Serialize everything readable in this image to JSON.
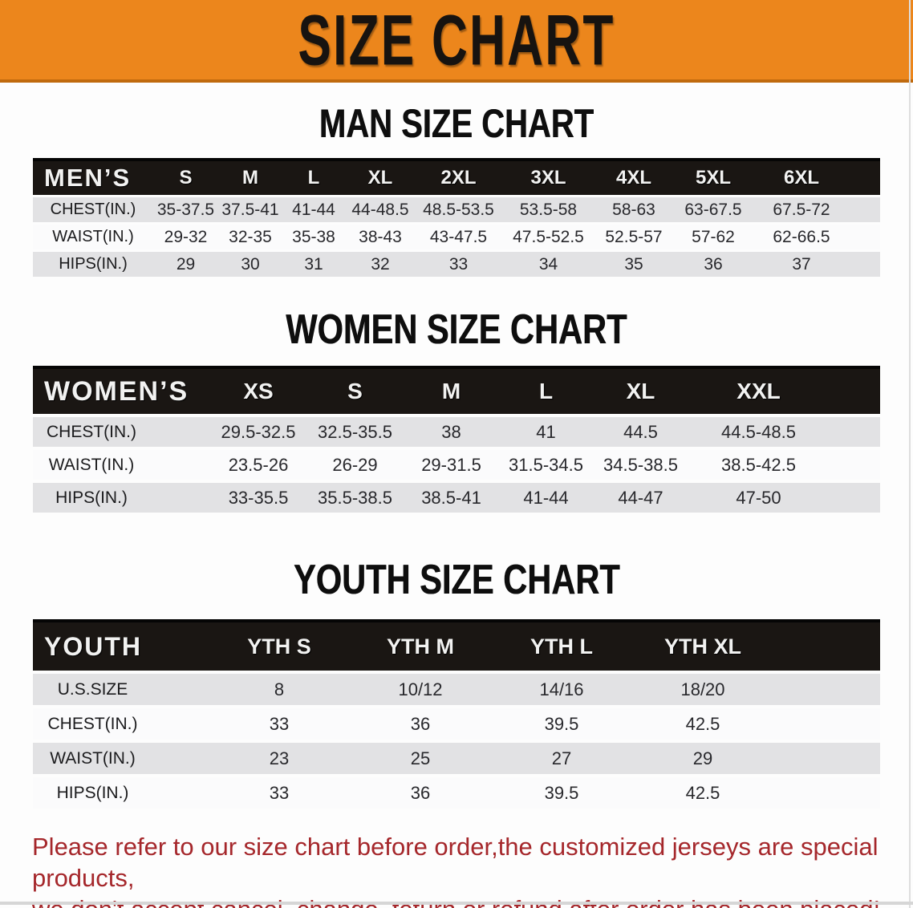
{
  "banner": {
    "title": "SIZE CHART"
  },
  "colors": {
    "banner_orange": "#ec861c",
    "table_header_black": "#1a1613",
    "row_gray": "#e2e2e4",
    "row_white": "#fbfbfc",
    "footer_red": "#a5272b"
  },
  "man_chart": {
    "title": "MAN SIZE CHART",
    "header": {
      "label": "MEN’S",
      "sizes": [
        "S",
        "M",
        "L",
        "XL",
        "2XL",
        "3XL",
        "4XL",
        "5XL",
        "6XL"
      ]
    },
    "rows": [
      {
        "label": "CHEST(IN.)",
        "values": [
          "35-37.5",
          "37.5-41",
          "41-44",
          "44-48.5",
          "48.5-53.5",
          "53.5-58",
          "58-63",
          "63-67.5",
          "67.5-72"
        ]
      },
      {
        "label": "WAIST(IN.)",
        "values": [
          "29-32",
          "32-35",
          "35-38",
          "38-43",
          "43-47.5",
          "47.5-52.5",
          "52.5-57",
          "57-62",
          "62-66.5"
        ]
      },
      {
        "label": "HIPS(IN.)",
        "values": [
          "29",
          "30",
          "31",
          "32",
          "33",
          "34",
          "35",
          "36",
          "37"
        ]
      }
    ]
  },
  "women_chart": {
    "title": "WOMEN SIZE CHART",
    "header": {
      "label": "WOMEN’S",
      "sizes": [
        "XS",
        "S",
        "M",
        "L",
        "XL",
        "XXL"
      ]
    },
    "rows": [
      {
        "label": "CHEST(IN.)",
        "values": [
          "29.5-32.5",
          "32.5-35.5",
          "38",
          "41",
          "44.5",
          "44.5-48.5"
        ]
      },
      {
        "label": "WAIST(IN.)",
        "values": [
          "23.5-26",
          "26-29",
          "29-31.5",
          "31.5-34.5",
          "34.5-38.5",
          "38.5-42.5"
        ]
      },
      {
        "label": "HIPS(IN.)",
        "values": [
          "33-35.5",
          "35.5-38.5",
          "38.5-41",
          "41-44",
          "44-47",
          "47-50"
        ]
      }
    ]
  },
  "youth_chart": {
    "title": "YOUTH SIZE CHART",
    "header": {
      "label": "YOUTH",
      "sizes": [
        "YTH S",
        "YTH M",
        "YTH L",
        "YTH XL"
      ]
    },
    "rows": [
      {
        "label": "U.S.SIZE",
        "values": [
          "8",
          "10/12",
          "14/16",
          "18/20"
        ]
      },
      {
        "label": "CHEST(IN.)",
        "values": [
          "33",
          "36",
          "39.5",
          "42.5"
        ]
      },
      {
        "label": "WAIST(IN.)",
        "values": [
          "23",
          "25",
          "27",
          "29"
        ]
      },
      {
        "label": "HIPS(IN.)",
        "values": [
          "33",
          "36",
          "39.5",
          "42.5"
        ]
      }
    ]
  },
  "footer": {
    "line1": "Please refer to our size chart before order,the customized jerseys are special products,",
    "line2": "we don't accept cancel, change, teturn or refund after order has been placed!"
  }
}
